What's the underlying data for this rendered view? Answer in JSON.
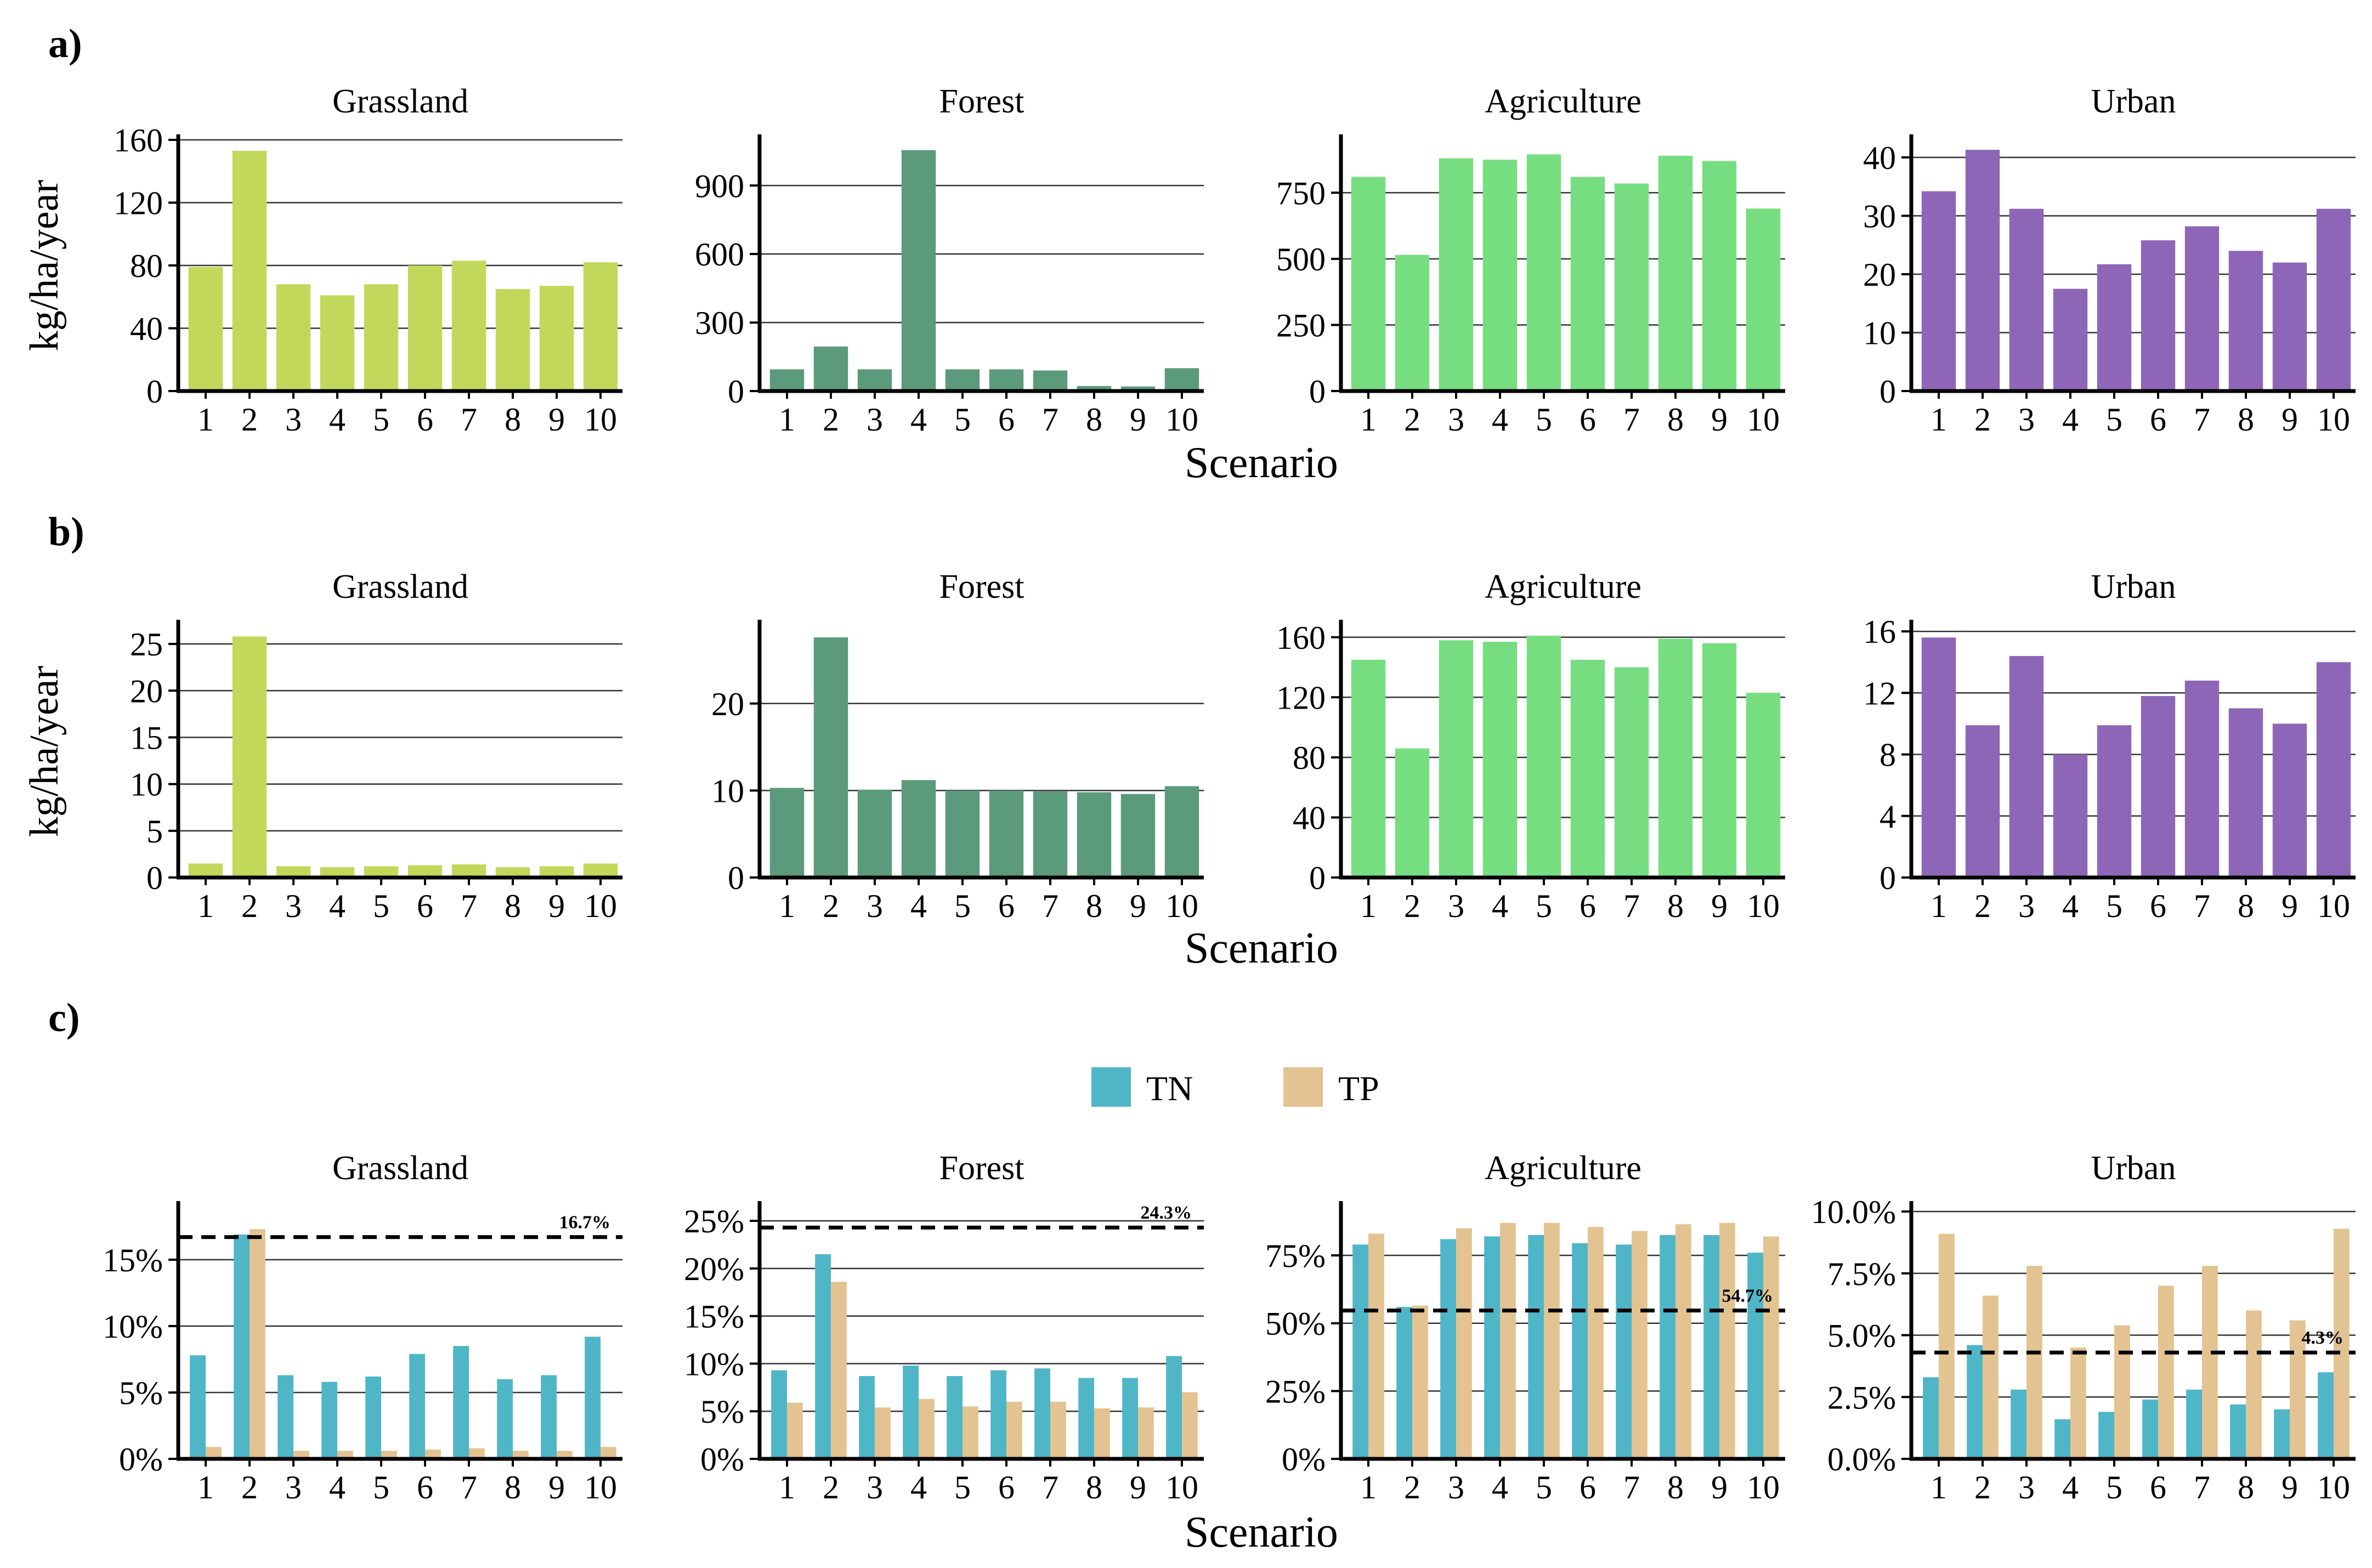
{
  "panel_labels": [
    "a)",
    "b)",
    "c)"
  ],
  "legend": [
    {
      "label": "TN",
      "color": "#4fb6c8"
    },
    {
      "label": "TP",
      "color": "#e3c391"
    }
  ],
  "colors": {
    "Grassland": "#c2d85a",
    "Forest": "#5b9a7c",
    "Agriculture": "#76de80",
    "Urban": "#8e66b7"
  },
  "chart_data": [
    {
      "type": "bar",
      "row": "a",
      "title": "Grassland",
      "categories": [
        "1",
        "2",
        "3",
        "4",
        "5",
        "6",
        "7",
        "8",
        "9",
        "10"
      ],
      "values": [
        79,
        153,
        68,
        61,
        68,
        80,
        83,
        65,
        67,
        82
      ],
      "ylim": [
        0,
        160
      ],
      "yticks": [
        0,
        40,
        80,
        120,
        160
      ],
      "ylabel": "kg/ha/year",
      "xlabel": ""
    },
    {
      "type": "bar",
      "row": "a",
      "title": "Forest",
      "categories": [
        "1",
        "2",
        "3",
        "4",
        "5",
        "6",
        "7",
        "8",
        "9",
        "10"
      ],
      "values": [
        95,
        195,
        95,
        1055,
        95,
        95,
        90,
        22,
        20,
        100
      ],
      "ylim": [
        0,
        1100
      ],
      "yticks": [
        0,
        300,
        600,
        900
      ],
      "ylabel": "",
      "xlabel": ""
    },
    {
      "type": "bar",
      "row": "a",
      "title": "Agriculture",
      "categories": [
        "1",
        "2",
        "3",
        "4",
        "5",
        "6",
        "7",
        "8",
        "9",
        "10"
      ],
      "values": [
        810,
        515,
        880,
        875,
        895,
        810,
        785,
        890,
        870,
        690
      ],
      "ylim": [
        0,
        950
      ],
      "yticks": [
        0,
        250,
        500,
        750
      ],
      "ylabel": "",
      "xlabel": "Scenario"
    },
    {
      "type": "bar",
      "row": "a",
      "title": "Urban",
      "categories": [
        "1",
        "2",
        "3",
        "4",
        "5",
        "6",
        "7",
        "8",
        "9",
        "10"
      ],
      "values": [
        34.2,
        41.3,
        31.2,
        17.5,
        21.7,
        25.8,
        28.2,
        24,
        22,
        31.2
      ],
      "ylim": [
        0,
        43
      ],
      "yticks": [
        0,
        10,
        20,
        30,
        40
      ],
      "ylabel": "",
      "xlabel": ""
    },
    {
      "type": "bar",
      "row": "b",
      "title": "Grassland",
      "categories": [
        "1",
        "2",
        "3",
        "4",
        "5",
        "6",
        "7",
        "8",
        "9",
        "10"
      ],
      "values": [
        1.5,
        25.8,
        1.2,
        1.1,
        1.2,
        1.3,
        1.4,
        1.1,
        1.2,
        1.5
      ],
      "ylim": [
        0,
        27
      ],
      "yticks": [
        0,
        5,
        10,
        15,
        20,
        25
      ],
      "ylabel": "kg/ha/year",
      "xlabel": ""
    },
    {
      "type": "bar",
      "row": "b",
      "title": "Forest",
      "categories": [
        "1",
        "2",
        "3",
        "4",
        "5",
        "6",
        "7",
        "8",
        "9",
        "10"
      ],
      "values": [
        10.3,
        27.6,
        10.1,
        11.2,
        10,
        10,
        9.9,
        9.8,
        9.6,
        10.5
      ],
      "ylim": [
        0,
        29
      ],
      "yticks": [
        0,
        10,
        20
      ],
      "ylabel": "",
      "xlabel": ""
    },
    {
      "type": "bar",
      "row": "b",
      "title": "Agriculture",
      "categories": [
        "1",
        "2",
        "3",
        "4",
        "5",
        "6",
        "7",
        "8",
        "9",
        "10"
      ],
      "values": [
        145,
        86,
        158,
        157,
        161,
        145,
        140,
        159,
        156,
        123
      ],
      "ylim": [
        0,
        168
      ],
      "yticks": [
        0,
        40,
        80,
        120,
        160
      ],
      "ylabel": "",
      "xlabel": "Scenario"
    },
    {
      "type": "bar",
      "row": "b",
      "title": "Urban",
      "categories": [
        "1",
        "2",
        "3",
        "4",
        "5",
        "6",
        "7",
        "8",
        "9",
        "10"
      ],
      "values": [
        15.6,
        9.9,
        14.4,
        8,
        9.9,
        11.8,
        12.8,
        11,
        10,
        14
      ],
      "ylim": [
        0,
        16.4
      ],
      "yticks": [
        0,
        4,
        8,
        12,
        16
      ],
      "ylabel": "",
      "xlabel": ""
    },
    {
      "type": "bar",
      "row": "c",
      "title": "Grassland",
      "categories": [
        "1",
        "2",
        "3",
        "4",
        "5",
        "6",
        "7",
        "8",
        "9",
        "10"
      ],
      "series": [
        {
          "name": "TN",
          "values": [
            7.8,
            16.9,
            6.3,
            5.8,
            6.2,
            7.9,
            8.5,
            6,
            6.3,
            9.2
          ]
        },
        {
          "name": "TP",
          "values": [
            0.9,
            17.3,
            0.6,
            0.6,
            0.6,
            0.7,
            0.8,
            0.6,
            0.6,
            0.9
          ]
        }
      ],
      "ylim": [
        0,
        19
      ],
      "yticks": [
        0,
        5,
        10,
        15
      ],
      "tick_labels": [
        "0%",
        "5%",
        "10%",
        "15%"
      ],
      "reference": 16.7,
      "reference_label": "16.7%",
      "ylabel": "",
      "xlabel": ""
    },
    {
      "type": "bar",
      "row": "c",
      "title": "Forest",
      "categories": [
        "1",
        "2",
        "3",
        "4",
        "5",
        "6",
        "7",
        "8",
        "9",
        "10"
      ],
      "series": [
        {
          "name": "TN",
          "values": [
            9.3,
            21.5,
            8.7,
            9.8,
            8.7,
            9.3,
            9.5,
            8.5,
            8.5,
            10.8
          ]
        },
        {
          "name": "TP",
          "values": [
            5.9,
            18.6,
            5.4,
            6.3,
            5.5,
            6,
            6,
            5.3,
            5.4,
            7
          ]
        }
      ],
      "ylim": [
        0,
        26.5
      ],
      "yticks": [
        0,
        5,
        10,
        15,
        20,
        25
      ],
      "tick_labels": [
        "0%",
        "5%",
        "10%",
        "15%",
        "20%",
        "25%"
      ],
      "reference": 24.3,
      "reference_label": "24.3%",
      "ylabel": "",
      "xlabel": ""
    },
    {
      "type": "bar",
      "row": "c",
      "title": "Agriculture",
      "categories": [
        "1",
        "2",
        "3",
        "4",
        "5",
        "6",
        "7",
        "8",
        "9",
        "10"
      ],
      "series": [
        {
          "name": "TN",
          "values": [
            79,
            56,
            81,
            82,
            82.5,
            79.5,
            79,
            82.5,
            82.5,
            76
          ]
        },
        {
          "name": "TP",
          "values": [
            83,
            56.5,
            85,
            87,
            87,
            85.5,
            84,
            86.5,
            87,
            82
          ]
        }
      ],
      "ylim": [
        0,
        93
      ],
      "yticks": [
        0,
        25,
        50,
        75
      ],
      "tick_labels": [
        "0%",
        "25%",
        "50%",
        "75%"
      ],
      "reference": 54.7,
      "reference_label": "54.7%",
      "ylabel": "",
      "xlabel": "Scenario"
    },
    {
      "type": "bar",
      "row": "c",
      "title": "Urban",
      "categories": [
        "1",
        "2",
        "3",
        "4",
        "5",
        "6",
        "7",
        "8",
        "9",
        "10"
      ],
      "series": [
        {
          "name": "TN",
          "values": [
            3.3,
            4.6,
            2.8,
            1.6,
            1.9,
            2.4,
            2.8,
            2.2,
            2,
            3.5
          ]
        },
        {
          "name": "TP",
          "values": [
            9.1,
            6.6,
            7.8,
            4.5,
            5.4,
            7,
            7.8,
            6,
            5.6,
            9.3
          ]
        }
      ],
      "ylim": [
        0,
        10.2
      ],
      "yticks": [
        0,
        2.5,
        5,
        7.5,
        10
      ],
      "tick_labels": [
        "0.0%",
        "2.5%",
        "5.0%",
        "7.5%",
        "10.0%"
      ],
      "reference": 4.3,
      "reference_label": "4.3%",
      "ylabel": "",
      "xlabel": ""
    }
  ]
}
